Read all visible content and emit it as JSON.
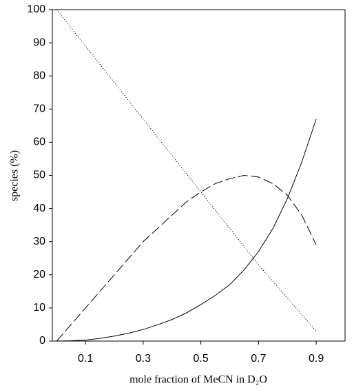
{
  "chart_data": {
    "type": "line",
    "x_label": "mole fraction of MeCN in D₂O",
    "y_label": "species (%)",
    "x": [
      0,
      0.05,
      0.1,
      0.15,
      0.2,
      0.25,
      0.3,
      0.35,
      0.4,
      0.45,
      0.5,
      0.55,
      0.6,
      0.65,
      0.7,
      0.75,
      0.8,
      0.85,
      0.9
    ],
    "series": [
      {
        "color": "#000000",
        "dash": "dotted",
        "values": [
          100,
          94.5,
          89,
          83.5,
          78,
          72.5,
          67,
          61.5,
          56,
          50.5,
          45,
          39.5,
          34,
          28.5,
          23,
          18,
          13,
          8,
          3
        ]
      },
      {
        "color": "#000000",
        "dash": "dashed",
        "values": [
          0,
          5,
          10,
          15,
          20,
          25,
          30,
          34,
          38,
          42,
          45,
          47.5,
          49,
          50,
          49.5,
          47.5,
          44,
          38,
          29
        ]
      },
      {
        "color": "#000000",
        "dash": "solid",
        "values": [
          0,
          0.1,
          0.3,
          0.8,
          1.5,
          2.4,
          3.5,
          4.9,
          6.5,
          8.5,
          11,
          13.8,
          17,
          21.5,
          27,
          34,
          43,
          54,
          67
        ]
      }
    ],
    "xlim": [
      -0.015,
      1.0
    ],
    "ylim": [
      0,
      100
    ],
    "xticks": [
      0.1,
      0.3,
      0.5,
      0.7,
      0.9
    ],
    "yticks": [
      0,
      10,
      20,
      30,
      40,
      50,
      60,
      70,
      80,
      90,
      100
    ],
    "grid": false
  }
}
